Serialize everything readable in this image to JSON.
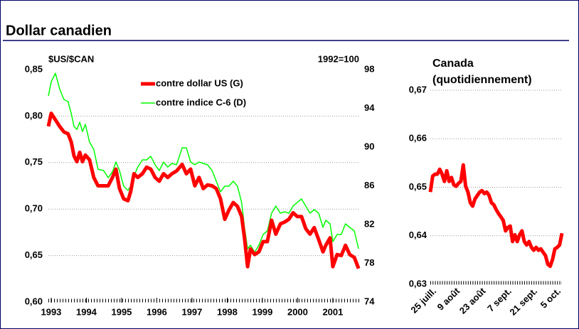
{
  "chart_data": [
    {
      "type": "line",
      "title": "Dollar canadien",
      "y_label": "$US/$CAN",
      "y2_label": "1992=100",
      "x": [
        1992.92,
        1993.0,
        1993.12,
        1993.24,
        1993.36,
        1993.48,
        1993.57,
        1993.65,
        1993.73,
        1993.81,
        1993.89,
        1993.97,
        1994.09,
        1994.21,
        1994.33,
        1994.49,
        1994.62,
        1994.74,
        1994.84,
        1994.94,
        1995.06,
        1995.18,
        1995.26,
        1995.35,
        1995.46,
        1995.59,
        1995.71,
        1995.83,
        1995.95,
        1996.07,
        1996.19,
        1996.31,
        1996.43,
        1996.56,
        1996.72,
        1996.84,
        1996.96,
        1997.08,
        1997.2,
        1997.32,
        1997.44,
        1997.57,
        1997.69,
        1997.81,
        1997.93,
        1998.05,
        1998.17,
        1998.29,
        1998.41,
        1998.49,
        1998.58,
        1998.66,
        1998.78,
        1998.9,
        1999.02,
        1999.14,
        1999.26,
        1999.38,
        1999.51,
        1999.63,
        1999.75,
        1999.87,
        1999.99,
        2000.11,
        2000.23,
        2000.35,
        2000.47,
        2000.6,
        2000.72,
        2000.8,
        2000.92,
        2001.0,
        2001.12,
        2001.24,
        2001.36,
        2001.48,
        2001.61,
        2001.73
      ],
      "xlim": [
        1992.92,
        2001.85
      ],
      "xticks": [
        1993,
        1994,
        1995,
        1996,
        1997,
        1998,
        1999,
        2000,
        2001
      ],
      "ylim": [
        0.6,
        0.85
      ],
      "yticks": [
        {
          "value": 0.6,
          "label": "0,60"
        },
        {
          "value": 0.65,
          "label": "0,65"
        },
        {
          "value": 0.7,
          "label": "0,70"
        },
        {
          "value": 0.75,
          "label": "0,75"
        },
        {
          "value": 0.8,
          "label": "0,80"
        },
        {
          "value": 0.85,
          "label": "0,85"
        }
      ],
      "y2lim": [
        74,
        98
      ],
      "y2ticks": [
        74,
        78,
        82,
        86,
        90,
        94,
        98
      ],
      "grid": true,
      "series": [
        {
          "name": "contre dollar US (G)",
          "color": "#ff0000",
          "values": [
            0.789,
            0.803,
            0.796,
            0.789,
            0.783,
            0.781,
            0.772,
            0.757,
            0.751,
            0.761,
            0.751,
            0.758,
            0.753,
            0.734,
            0.725,
            0.725,
            0.725,
            0.734,
            0.743,
            0.722,
            0.711,
            0.709,
            0.719,
            0.738,
            0.734,
            0.738,
            0.745,
            0.743,
            0.734,
            0.73,
            0.738,
            0.734,
            0.738,
            0.741,
            0.748,
            0.738,
            0.743,
            0.725,
            0.734,
            0.722,
            0.726,
            0.725,
            0.722,
            0.711,
            0.689,
            0.699,
            0.707,
            0.703,
            0.692,
            0.669,
            0.638,
            0.657,
            0.651,
            0.654,
            0.665,
            0.665,
            0.688,
            0.673,
            0.684,
            0.686,
            0.689,
            0.696,
            0.692,
            0.692,
            0.679,
            0.673,
            0.68,
            0.667,
            0.654,
            0.661,
            0.669,
            0.638,
            0.651,
            0.65,
            0.661,
            0.651,
            0.648,
            0.636
          ]
        },
        {
          "name": "contre indice C-6 (D)",
          "color": "#00ff00",
          "axis": "y2",
          "values": [
            95.28,
            96.75,
            97.63,
            96.02,
            94.92,
            94.7,
            93.45,
            92.13,
            91.83,
            92.57,
            91.61,
            92.35,
            90.51,
            89.78,
            87.72,
            87.58,
            86.84,
            87.43,
            88.46,
            87.58,
            85.96,
            85.52,
            85.96,
            86.99,
            87.94,
            88.68,
            88.68,
            89.05,
            88.17,
            87.58,
            88.46,
            87.94,
            88.31,
            88.17,
            89.93,
            89.93,
            88.46,
            88.17,
            88.46,
            88.31,
            88.17,
            87.58,
            86.48,
            85.38,
            85.96,
            85.96,
            86.48,
            85.96,
            84.28,
            81.71,
            79.5,
            79.87,
            79.14,
            79.87,
            80.97,
            81.34,
            83.17,
            83.91,
            83.17,
            83.32,
            83.17,
            83.91,
            84.28,
            84.64,
            83.91,
            83.17,
            83.54,
            83.17,
            81.71,
            82.44,
            82.07,
            80.24,
            80.97,
            80.97,
            82.07,
            81.71,
            81.34,
            79.5
          ]
        }
      ]
    },
    {
      "type": "line",
      "title": "Canada",
      "subtitle": "(quotidiennement)",
      "color": "#ff0000",
      "categories": [
        null,
        null,
        "25 juill.",
        null,
        null,
        null,
        null,
        null,
        null,
        null,
        null,
        null,
        "9 août",
        null,
        null,
        null,
        null,
        null,
        null,
        null,
        null,
        null,
        null,
        "23 août",
        null,
        null,
        null,
        null,
        null,
        null,
        null,
        null,
        null,
        null,
        "7 sept.",
        null,
        null,
        null,
        null,
        null,
        null,
        null,
        null,
        null,
        null,
        "21 sept.",
        null,
        null,
        null,
        null,
        null,
        null,
        null,
        null,
        null,
        "5 oct.",
        null
      ],
      "values": [
        0.649,
        0.6523,
        0.6527,
        0.6527,
        0.6537,
        0.6527,
        0.6512,
        0.6534,
        0.6512,
        0.652,
        0.6505,
        0.6502,
        0.6508,
        0.6512,
        0.6546,
        0.6502,
        0.649,
        0.6468,
        0.6461,
        0.6476,
        0.6483,
        0.649,
        0.6493,
        0.6487,
        0.649,
        0.6483,
        0.6468,
        0.6464,
        0.6454,
        0.6446,
        0.6439,
        0.6432,
        0.641,
        0.6417,
        0.642,
        0.6388,
        0.6402,
        0.6388,
        0.6402,
        0.641,
        0.6388,
        0.6381,
        0.6388,
        0.6376,
        0.637,
        0.6376,
        0.637,
        0.6373,
        0.6366,
        0.6359,
        0.6341,
        0.6337,
        0.6351,
        0.6373,
        0.6376,
        0.6381,
        0.6405
      ],
      "ylim": [
        0.63,
        0.67
      ],
      "yticks": [
        {
          "value": 0.63,
          "label": "0,63"
        },
        {
          "value": 0.64,
          "label": "0,64"
        },
        {
          "value": 0.65,
          "label": "0,65"
        },
        {
          "value": 0.66,
          "label": "0,66"
        },
        {
          "value": 0.67,
          "label": "0,67"
        }
      ],
      "grid": true
    }
  ]
}
